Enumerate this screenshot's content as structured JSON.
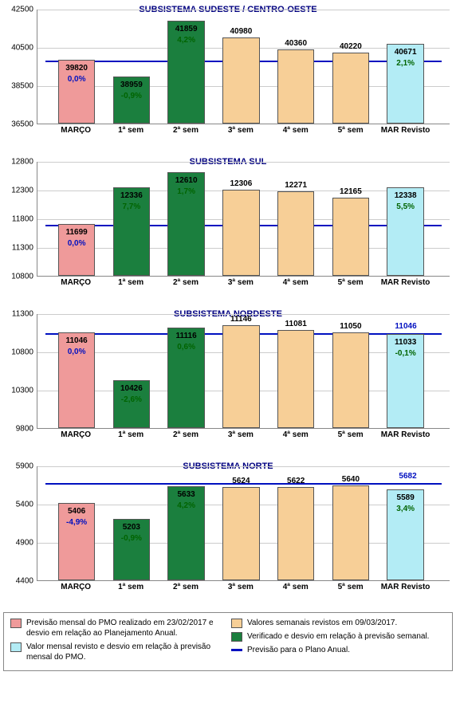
{
  "colors": {
    "red": "#ef9a9a",
    "green": "#1b7f3e",
    "orange": "#f7cf97",
    "cyan": "#b3ecf5",
    "blue_line": "#0010c0",
    "pct_blue": "#0010c0",
    "pct_green": "#006400",
    "title": "#000080"
  },
  "x_categories": [
    "MARÇO",
    "1ª sem",
    "2ª sem",
    "3ª sem",
    "4ª sem",
    "5ª sem",
    "MAR Revisto"
  ],
  "charts": [
    {
      "title": "SUBSISTEMA SUDESTE / CENTRO-OESTE",
      "ylim": [
        36500,
        42500
      ],
      "ystep": 2000,
      "ref_value": 39820,
      "ref_label": "39820",
      "bars": [
        {
          "c": "red",
          "v": 39820,
          "label": "39820",
          "pct": "0,0%",
          "pct_c": "pct_blue",
          "in": true
        },
        {
          "c": "green",
          "v": 38959,
          "label": "38959",
          "pct": "-0,9%",
          "pct_c": "pct_green",
          "in": true
        },
        {
          "c": "green",
          "v": 41859,
          "label": "41859",
          "pct": "4,2%",
          "pct_c": "pct_green",
          "in": true
        },
        {
          "c": "orange",
          "v": 40980,
          "label": "40980",
          "in": false
        },
        {
          "c": "orange",
          "v": 40360,
          "label": "40360",
          "in": false
        },
        {
          "c": "orange",
          "v": 40220,
          "label": "40220",
          "in": false
        },
        {
          "c": "cyan",
          "v": 40671,
          "label": "40671",
          "pct": "2,1%",
          "pct_c": "pct_green",
          "in": true
        }
      ]
    },
    {
      "title": "SUBSISTEMA SUL",
      "ylim": [
        10800,
        12800
      ],
      "ystep": 500,
      "ref_value": 11699,
      "ref_label": "11699",
      "bars": [
        {
          "c": "red",
          "v": 11699,
          "label": "11699",
          "pct": "0,0%",
          "pct_c": "pct_blue",
          "in": true
        },
        {
          "c": "green",
          "v": 12336,
          "label": "12336",
          "pct": "7,7%",
          "pct_c": "pct_green",
          "in": true
        },
        {
          "c": "green",
          "v": 12610,
          "label": "12610",
          "pct": "1,7%",
          "pct_c": "pct_green",
          "in": true
        },
        {
          "c": "orange",
          "v": 12306,
          "label": "12306",
          "in": false
        },
        {
          "c": "orange",
          "v": 12271,
          "label": "12271",
          "in": false
        },
        {
          "c": "orange",
          "v": 12165,
          "label": "12165",
          "in": false
        },
        {
          "c": "cyan",
          "v": 12338,
          "label": "12338",
          "pct": "5,5%",
          "pct_c": "pct_green",
          "in": true
        }
      ]
    },
    {
      "title": "SUBSISTEMA NORDESTE",
      "ylim": [
        9800,
        11300
      ],
      "ystep": 500,
      "ref_value": 11046,
      "ref_label": "11046",
      "bars": [
        {
          "c": "red",
          "v": 11046,
          "label": "11046",
          "pct": "0,0%",
          "pct_c": "pct_blue",
          "in": true
        },
        {
          "c": "green",
          "v": 10426,
          "label": "10426",
          "pct": "-2,6%",
          "pct_c": "pct_green",
          "in": true
        },
        {
          "c": "green",
          "v": 11116,
          "label": "11116",
          "pct": "0,6%",
          "pct_c": "pct_green",
          "in": true
        },
        {
          "c": "orange",
          "v": 11146,
          "label": "11146",
          "in": false
        },
        {
          "c": "orange",
          "v": 11081,
          "label": "11081",
          "in": false
        },
        {
          "c": "orange",
          "v": 11050,
          "label": "11050",
          "in": false
        },
        {
          "c": "cyan",
          "v": 11033,
          "label": "11033",
          "pct": "-0,1%",
          "pct_c": "pct_green",
          "in": true
        }
      ]
    },
    {
      "title": "SUBSISTEMA NORTE",
      "ylim": [
        4400,
        5900
      ],
      "ystep": 500,
      "ref_value": 5682,
      "ref_label": "5682",
      "bars": [
        {
          "c": "red",
          "v": 5406,
          "label": "5406",
          "pct": "-4,9%",
          "pct_c": "pct_blue",
          "in": true
        },
        {
          "c": "green",
          "v": 5203,
          "label": "5203",
          "pct": "-0,9%",
          "pct_c": "pct_green",
          "in": true
        },
        {
          "c": "green",
          "v": 5633,
          "label": "5633",
          "pct": "4,2%",
          "pct_c": "pct_green",
          "in": true
        },
        {
          "c": "orange",
          "v": 5624,
          "label": "5624",
          "in": false
        },
        {
          "c": "orange",
          "v": 5622,
          "label": "5622",
          "in": false
        },
        {
          "c": "orange",
          "v": 5640,
          "label": "5640",
          "in": false
        },
        {
          "c": "cyan",
          "v": 5589,
          "label": "5589",
          "pct": "3,4%",
          "pct_c": "pct_green",
          "in": true
        }
      ]
    }
  ],
  "legend": {
    "red": "Previsão mensal do PMO realizado em 23/02/2017 e desvio em relação ao Planejamento Anual.",
    "cyan": "Valor mensal revisto e desvio em relação à previsão mensal do PMO.",
    "orange": "Valores semanais revistos em 09/03/2017.",
    "green": "Verificado e desvio em relação à previsão semanal.",
    "blue": "Previsão para o Plano Anual."
  }
}
